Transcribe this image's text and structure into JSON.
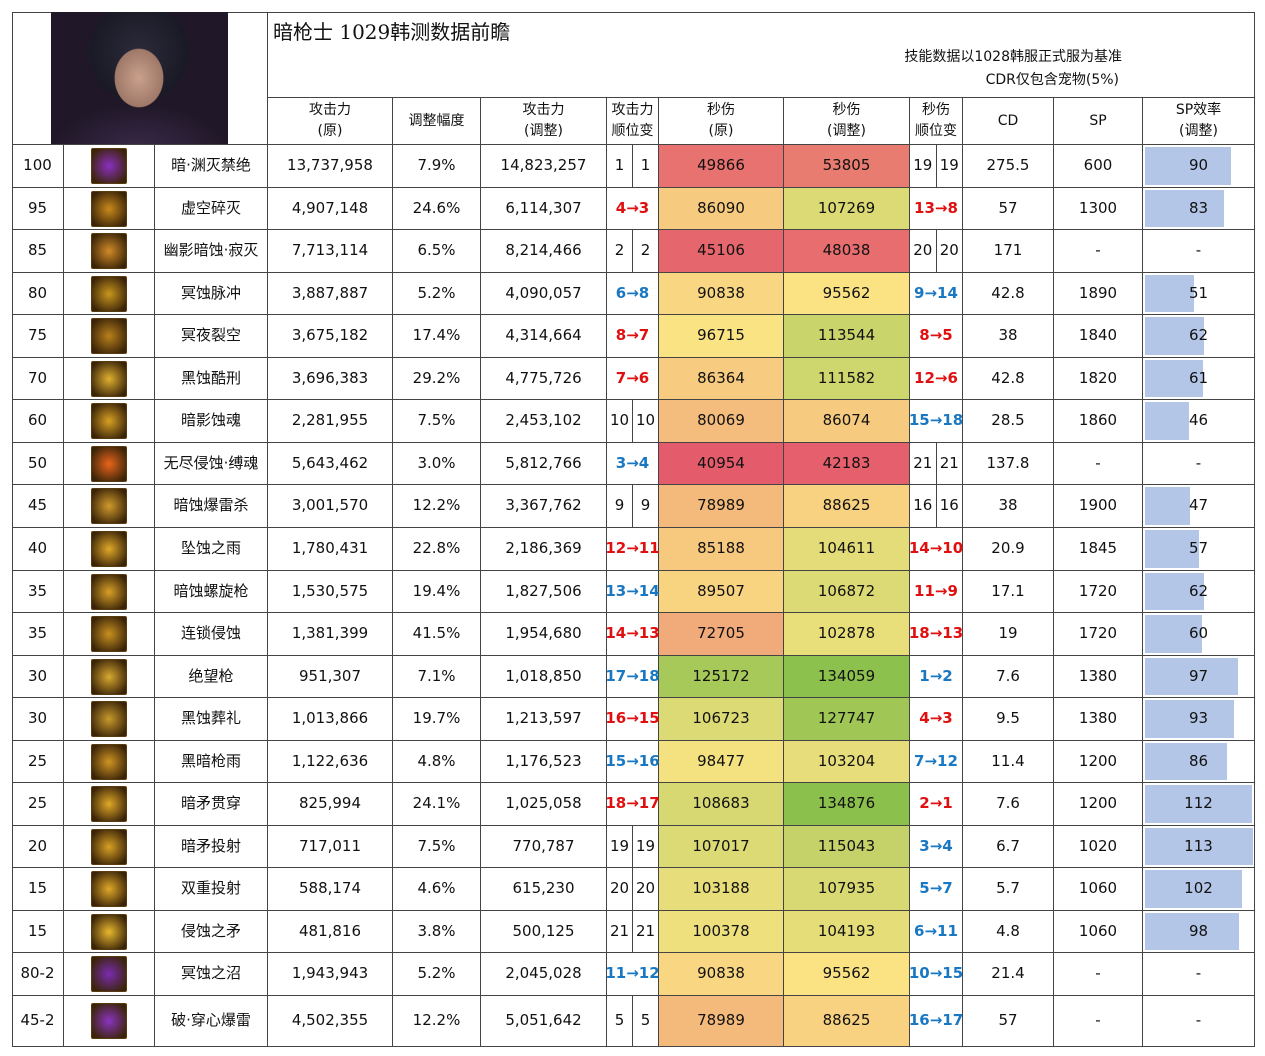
{
  "header": {
    "title": "暗枪士 1029韩测数据前瞻",
    "note1": "技能数据以1028韩服正式服为基准",
    "note2": "CDR仅包含宠物(5%)"
  },
  "columns": [
    [
      "攻击力",
      "(原)"
    ],
    "调整幅度",
    [
      "攻击力",
      "(调整)"
    ],
    [
      "攻击力",
      "顺位变"
    ],
    [
      "秒伤",
      "(原)"
    ],
    [
      "秒伤",
      "(调整)"
    ],
    [
      "秒伤",
      "顺位变"
    ],
    "CD",
    "SP",
    [
      "SP效率",
      "(调整)"
    ]
  ],
  "heatmap": {
    "low": "#e45c6b",
    "mid": "#fbe484",
    "high": "#8bc04c"
  },
  "bar_color": "#b4c6e7",
  "rows": [
    {
      "level": "100",
      "icon_color": "#8a2fc0",
      "name": "暗·渊灭禁绝",
      "atk": "13,737,958",
      "adj": "7.9%",
      "atk2": "14,823,257",
      "atk_rank": [
        1,
        1
      ],
      "dps": 49866,
      "dps2": 53805,
      "dps_rank": [
        19,
        19
      ],
      "cd": 275.5,
      "sp": 600,
      "sp_eff": 90
    },
    {
      "level": "95",
      "icon_color": "#c98a1c",
      "name": "虚空碎灭",
      "atk": "4,907,148",
      "adj": "24.6%",
      "atk2": "6,114,307",
      "atk_rank": "4→3",
      "dps": 86090,
      "dps2": 107269,
      "dps_rank": "13→8",
      "cd": 57,
      "sp": 1300,
      "sp_eff": 83
    },
    {
      "level": "85",
      "icon_color": "#d08a28",
      "name": "幽影暗蚀·寂灭",
      "atk": "7,713,114",
      "adj": "6.5%",
      "atk2": "8,214,466",
      "atk_rank": [
        2,
        2
      ],
      "dps": 45106,
      "dps2": 48038,
      "dps_rank": [
        20,
        20
      ],
      "cd": 171,
      "sp": "-",
      "sp_eff": "-"
    },
    {
      "level": "80",
      "icon_color": "#c9961e",
      "name": "冥蚀脉冲",
      "atk": "3,887,887",
      "adj": "5.2%",
      "atk2": "4,090,057",
      "atk_rank": "6→8",
      "dps": 90838,
      "dps2": 95562,
      "dps_rank": "9→14",
      "cd": 42.8,
      "sp": 1890,
      "sp_eff": 51
    },
    {
      "level": "75",
      "icon_color": "#b9801c",
      "name": "冥夜裂空",
      "atk": "3,675,182",
      "adj": "17.4%",
      "atk2": "4,314,664",
      "atk_rank": "8→7",
      "dps": 96715,
      "dps2": 113544,
      "dps_rank": "8→5",
      "cd": 38,
      "sp": 1840,
      "sp_eff": 62
    },
    {
      "level": "70",
      "icon_color": "#e0b030",
      "name": "黑蚀酷刑",
      "atk": "3,696,383",
      "adj": "29.2%",
      "atk2": "4,775,726",
      "atk_rank": "7→6",
      "dps": 86364,
      "dps2": 111582,
      "dps_rank": "12→6",
      "cd": 42.8,
      "sp": 1820,
      "sp_eff": 61
    },
    {
      "level": "60",
      "icon_color": "#d8a024",
      "name": "暗影蚀魂",
      "atk": "2,281,955",
      "adj": "7.5%",
      "atk2": "2,453,102",
      "atk_rank": [
        10,
        10
      ],
      "dps": 80069,
      "dps2": 86074,
      "dps_rank": "15→18",
      "cd": 28.5,
      "sp": 1860,
      "sp_eff": 46
    },
    {
      "level": "50",
      "icon_color": "#e8641c",
      "name": "无尽侵蚀·缚魂",
      "atk": "5,643,462",
      "adj": "3.0%",
      "atk2": "5,812,766",
      "atk_rank": "3→4",
      "dps": 40954,
      "dps2": 42183,
      "dps_rank": [
        21,
        21
      ],
      "cd": 137.8,
      "sp": "-",
      "sp_eff": "-"
    },
    {
      "level": "45",
      "icon_color": "#d09a2c",
      "name": "暗蚀爆雷杀",
      "atk": "3,001,570",
      "adj": "12.2%",
      "atk2": "3,367,762",
      "atk_rank": [
        9,
        9
      ],
      "dps": 78989,
      "dps2": 88625,
      "dps_rank": [
        16,
        16
      ],
      "cd": 38,
      "sp": 1900,
      "sp_eff": 47
    },
    {
      "level": "40",
      "icon_color": "#e0a828",
      "name": "坠蚀之雨",
      "atk": "1,780,431",
      "adj": "22.8%",
      "atk2": "2,186,369",
      "atk_rank": "12→11",
      "dps": 85188,
      "dps2": 104611,
      "dps_rank": "14→10",
      "cd": 20.9,
      "sp": 1845,
      "sp_eff": 57
    },
    {
      "level": "35",
      "icon_color": "#d8a028",
      "name": "暗蚀螺旋枪",
      "atk": "1,530,575",
      "adj": "19.4%",
      "atk2": "1,827,506",
      "atk_rank": "13→14",
      "dps": 89507,
      "dps2": 106872,
      "dps_rank": "11→9",
      "cd": 17.1,
      "sp": 1720,
      "sp_eff": 62
    },
    {
      "level": "35",
      "icon_color": "#c89020",
      "name": "连锁侵蚀",
      "atk": "1,381,399",
      "adj": "41.5%",
      "atk2": "1,954,680",
      "atk_rank": "14→13",
      "dps": 72705,
      "dps2": 102878,
      "dps_rank": "18→13",
      "cd": 19,
      "sp": 1720,
      "sp_eff": 60
    },
    {
      "level": "30",
      "icon_color": "#d8a830",
      "name": "绝望枪",
      "atk": "951,307",
      "adj": "7.1%",
      "atk2": "1,018,850",
      "atk_rank": "17→18",
      "dps": 125172,
      "dps2": 134059,
      "dps_rank": "1→2",
      "cd": 7.6,
      "sp": 1380,
      "sp_eff": 97
    },
    {
      "level": "30",
      "icon_color": "#c89a2c",
      "name": "黑蚀葬礼",
      "atk": "1,013,866",
      "adj": "19.7%",
      "atk2": "1,213,597",
      "atk_rank": "16→15",
      "dps": 106723,
      "dps2": 127747,
      "dps_rank": "4→3",
      "cd": 9.5,
      "sp": 1380,
      "sp_eff": 93
    },
    {
      "level": "25",
      "icon_color": "#d09424",
      "name": "黑暗枪雨",
      "atk": "1,122,636",
      "adj": "4.8%",
      "atk2": "1,176,523",
      "atk_rank": "15→16",
      "dps": 98477,
      "dps2": 103204,
      "dps_rank": "7→12",
      "cd": 11.4,
      "sp": 1200,
      "sp_eff": 86
    },
    {
      "level": "25",
      "icon_color": "#e0a828",
      "name": "暗矛贯穿",
      "atk": "825,994",
      "adj": "24.1%",
      "atk2": "1,025,058",
      "atk_rank": "18→17",
      "dps": 108683,
      "dps2": 134876,
      "dps_rank": "2→1",
      "cd": 7.6,
      "sp": 1200,
      "sp_eff": 112
    },
    {
      "level": "20",
      "icon_color": "#d8a024",
      "name": "暗矛投射",
      "atk": "717,011",
      "adj": "7.5%",
      "atk2": "770,787",
      "atk_rank": [
        19,
        19
      ],
      "dps": 107017,
      "dps2": 115043,
      "dps_rank": "3→4",
      "cd": 6.7,
      "sp": 1020,
      "sp_eff": 113
    },
    {
      "level": "15",
      "icon_color": "#e0a828",
      "name": "双重投射",
      "atk": "588,174",
      "adj": "4.6%",
      "atk2": "615,230",
      "atk_rank": [
        20,
        20
      ],
      "dps": 103188,
      "dps2": 107935,
      "dps_rank": "5→7",
      "cd": 5.7,
      "sp": 1060,
      "sp_eff": 102
    },
    {
      "level": "15",
      "icon_color": "#e8b830",
      "name": "侵蚀之矛",
      "atk": "481,816",
      "adj": "3.8%",
      "atk2": "500,125",
      "atk_rank": [
        21,
        21
      ],
      "dps": 100378,
      "dps2": 104193,
      "dps_rank": "6→11",
      "cd": 4.8,
      "sp": 1060,
      "sp_eff": 98
    },
    {
      "level": "80-2",
      "icon_color": "#7a2cb0",
      "name": "冥蚀之沼",
      "atk": "1,943,943",
      "adj": "5.2%",
      "atk2": "2,045,028",
      "atk_rank": "11→12",
      "dps": 90838,
      "dps2": 95562,
      "dps_rank": "10→15",
      "cd": 21.4,
      "sp": "-",
      "sp_eff": "-"
    },
    {
      "level": "45-2",
      "icon_color": "#8a34c0",
      "name": "破·穿心爆雷",
      "atk": "4,502,355",
      "adj": "12.2%",
      "atk2": "5,051,642",
      "atk_rank": [
        5,
        5
      ],
      "dps": 78989,
      "dps2": 88625,
      "dps_rank": "16→17",
      "cd": 57,
      "sp": "-",
      "sp_eff": "-"
    }
  ]
}
